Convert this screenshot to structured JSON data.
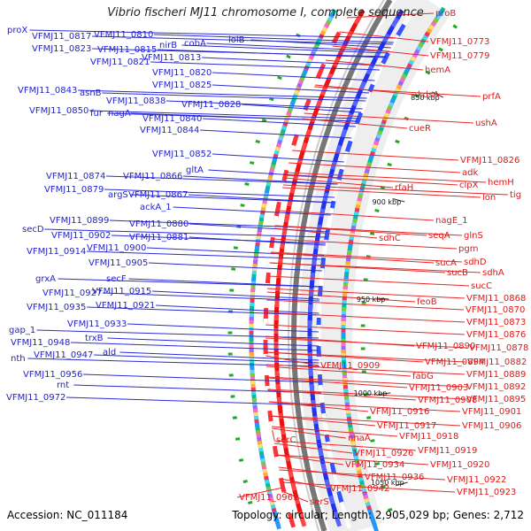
{
  "title": "Vibrio fischeri MJ11 chromosome I, complete sequence",
  "accession": "Accession: NC_011184",
  "topology": "Topology: circular; Length: 2,905,029 bp; Genes: 2,712",
  "colors": {
    "reverse_strand_label": "#1f1fd0",
    "forward_strand_label": "#e01818",
    "backbone": "#777777"
  },
  "ticks": [
    "850 kbp",
    "900 kbp",
    "950 kbp",
    "1000 kbp",
    "1050 kbp"
  ],
  "blue_labels": [
    "proX",
    "VFMJ11_0817",
    "VFMJ11_0810",
    "VFMJ11_0823",
    "VFMJ11_0815",
    "nirB",
    "cobA",
    "lolB",
    "VFMJ11_0813",
    "VFMJ11_0821",
    "VFMJ11_0820",
    "VFMJ11_0825",
    "VFMJ11_0843",
    "asnB",
    "VFMJ11_0838",
    "VFMJ11_0828",
    "VFMJ11_0850",
    "fur",
    "nagA",
    "VFMJ11_0840",
    "VFMJ11_0844",
    "VFMJ11_0852",
    "gltA",
    "VFMJ11_0874",
    "VFMJ11_0866",
    "VFMJ11_0879",
    "argS",
    "VFMJ11_0867",
    "ackA_1",
    "VFMJ11_0880",
    "VFMJ11_0899",
    "VFMJ11_0881",
    "secD",
    "VFMJ11_0902",
    "VFMJ11_0900",
    "VFMJ11_0914",
    "VFMJ11_0905",
    "secF",
    "grxA",
    "VFMJ11_0927",
    "VFMJ11_0915",
    "VFMJ11_0935",
    "VFMJ11_0921",
    "VFMJ11_0933",
    "gap_1",
    "trxB",
    "VFMJ11_0948",
    "ald",
    "nth",
    "VFMJ11_0947",
    "VFMJ11_0956",
    "rnt",
    "VFMJ11_0972"
  ],
  "red_labels": [
    "proB",
    "VFMJ11_0773",
    "VFMJ11_0779",
    "hemA",
    "kdsA",
    "prfA",
    "ushA",
    "cueR",
    "VFMJ11_0826",
    "adk",
    "clpX",
    "hemH",
    "rfaH",
    "lon",
    "tig",
    "nagE_1",
    "seqA",
    "glnS",
    "sdhC",
    "pgm",
    "sdhD",
    "sucA",
    "sucB",
    "sdhA",
    "sucC",
    "VFMJ11_0868",
    "feoB",
    "VFMJ11_0870",
    "VFMJ11_0873",
    "VFMJ11_0876",
    "VFMJ11_0890",
    "VFMJ11_0878",
    "VFMJ11_0894",
    "VFMJ11_0882",
    "VFMJ11_0909",
    "fabG",
    "VFMJ11_0889",
    "VFMJ11_0903",
    "VFMJ11_0892",
    "VFMJ11_0908",
    "VFMJ11_0895",
    "VFMJ11_0916",
    "VFMJ11_0901",
    "VFMJ11_0917",
    "VFMJ11_0906",
    "VFMJ11_0918",
    "serC",
    "nhaA",
    "VFMJ11_0919",
    "VFMJ11_0926",
    "VFMJ11_0920",
    "VFMJ11_0934",
    "VFMJ11_0936",
    "VFMJ11_0922",
    "VFMJ11_0942",
    "VFMJ11_0923",
    "VFMJ11_0961",
    "serS"
  ]
}
